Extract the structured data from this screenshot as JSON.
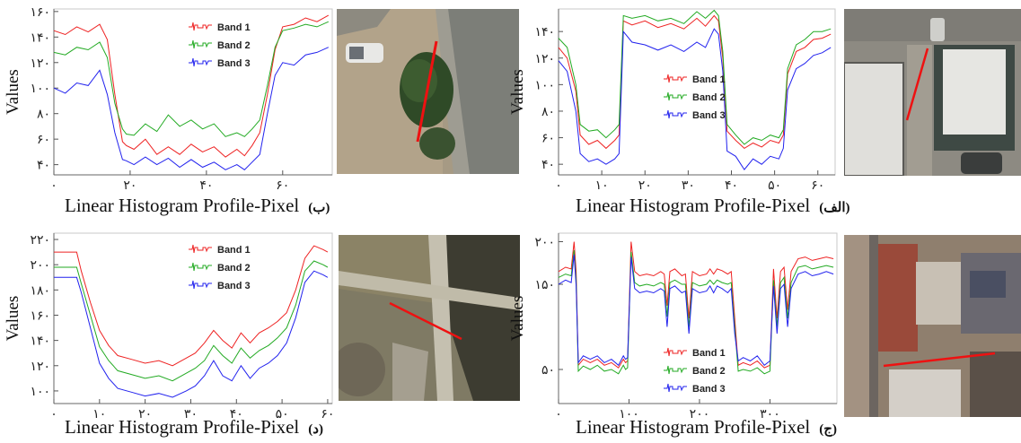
{
  "panels": [
    {
      "id": "b",
      "label": "(ب)",
      "xlabel": "Linear Histogram Profile-Pixel",
      "ylabel": "Values",
      "image": "tree-line",
      "chart_data": {
        "type": "line",
        "xlim": [
          0,
          73
        ],
        "ylim": [
          32,
          162
        ],
        "xticks": [
          0,
          20,
          40,
          60
        ],
        "xtick_labels": [
          "۰",
          "۲۰",
          "۴۰",
          "۶۰"
        ],
        "yticks": [
          40,
          60,
          80,
          100,
          120,
          140,
          160
        ],
        "ytick_labels": [
          "۴۰",
          "۶۰",
          "۸۰",
          "۱۰۰",
          "۱۲۰",
          "۱۴۰",
          "۱۶۰"
        ],
        "x": [
          0,
          3,
          6,
          9,
          12,
          14,
          16,
          18,
          19,
          21,
          24,
          27,
          30,
          33,
          36,
          39,
          42,
          45,
          48,
          50,
          52,
          54,
          56,
          58,
          60,
          63,
          66,
          69,
          72
        ],
        "series": [
          {
            "name": "Band 1",
            "color": "#ee2222",
            "values": [
              145,
              142,
              148,
              144,
              150,
              138,
              95,
              58,
              55,
              52,
              60,
              48,
              54,
              48,
              56,
              50,
              54,
              46,
              52,
              47,
              55,
              65,
              95,
              130,
              148,
              150,
              155,
              152,
              157
            ]
          },
          {
            "name": "Band 2",
            "color": "#22aa22",
            "values": [
              128,
              126,
              132,
              130,
              136,
              124,
              88,
              68,
              64,
              63,
              72,
              66,
              79,
              70,
              75,
              68,
              72,
              62,
              65,
              62,
              68,
              75,
              102,
              132,
              145,
              147,
              150,
              148,
              152
            ]
          },
          {
            "name": "Band 3",
            "color": "#2222ee",
            "values": [
              100,
              96,
              104,
              102,
              114,
              95,
              65,
              44,
              43,
              40,
              46,
              40,
              45,
              38,
              44,
              38,
              42,
              36,
              40,
              36,
              42,
              48,
              80,
              110,
              120,
              118,
              126,
              128,
              132
            ]
          }
        ]
      }
    },
    {
      "id": "alef",
      "label": "(الف)",
      "xlabel": "Linear Histogram Profile-Pixel",
      "ylabel": "Values",
      "image": "buildings-line",
      "chart_data": {
        "type": "line",
        "xlim": [
          0,
          64
        ],
        "ylim": [
          32,
          157
        ],
        "xticks": [
          0,
          10,
          20,
          30,
          40,
          50,
          60
        ],
        "xtick_labels": [
          "۰",
          "۱۰",
          "۲۰",
          "۳۰",
          "۴۰",
          "۵۰",
          "۶۰"
        ],
        "yticks": [
          40,
          60,
          80,
          100,
          120,
          140
        ],
        "ytick_labels": [
          "۴۰",
          "۶۰",
          "۸۰",
          "۱۰۰",
          "۱۲۰",
          "۱۴۰"
        ],
        "x": [
          0,
          2,
          4,
          5,
          7,
          9,
          11,
          13,
          14,
          15,
          17,
          20,
          23,
          26,
          29,
          32,
          34,
          36,
          37,
          38,
          39,
          41,
          43,
          45,
          47,
          49,
          51,
          52,
          53,
          55,
          57,
          59,
          61,
          63
        ],
        "series": [
          {
            "name": "Band 1",
            "color": "#ee2222",
            "values": [
              128,
              120,
              95,
              62,
              55,
              58,
              52,
              58,
              62,
              148,
              145,
              148,
              143,
              146,
              142,
              150,
              144,
              152,
              148,
              120,
              65,
              58,
              52,
              56,
              53,
              58,
              56,
              62,
              108,
              125,
              128,
              134,
              135,
              138
            ]
          },
          {
            "name": "Band 2",
            "color": "#22aa22",
            "values": [
              135,
              128,
              100,
              70,
              65,
              66,
              60,
              66,
              70,
              152,
              150,
              152,
              148,
              150,
              146,
              155,
              150,
              156,
              152,
              125,
              70,
              62,
              55,
              60,
              58,
              62,
              60,
              66,
              112,
              130,
              134,
              140,
              140,
              142
            ]
          },
          {
            "name": "Band 3",
            "color": "#2222ee",
            "values": [
              118,
              110,
              80,
              48,
              42,
              44,
              40,
              44,
              48,
              140,
              132,
              130,
              126,
              130,
              125,
              132,
              128,
              142,
              138,
              110,
              50,
              46,
              36,
              44,
              40,
              46,
              44,
              52,
              96,
              112,
              116,
              122,
              124,
              128
            ]
          }
        ]
      }
    },
    {
      "id": "dal",
      "label": "(د)",
      "xlabel": "Linear Histogram Profile-Pixel",
      "ylabel": "Values",
      "image": "crosswalk-line",
      "chart_data": {
        "type": "line",
        "xlim": [
          0,
          61
        ],
        "ylim": [
          90,
          225
        ],
        "xticks": [
          0,
          10,
          20,
          30,
          40,
          50,
          60
        ],
        "xtick_labels": [
          "۰",
          "۱۰",
          "۲۰",
          "۳۰",
          "۴۰",
          "۵۰",
          "۶۰"
        ],
        "yticks": [
          100,
          120,
          140,
          160,
          180,
          200,
          220
        ],
        "ytick_labels": [
          "۱۰۰",
          "۱۲۰",
          "۱۴۰",
          "۱۶۰",
          "۱۸۰",
          "۲۰۰",
          "۲۲۰"
        ],
        "x": [
          0,
          3,
          5,
          6,
          8,
          10,
          12,
          14,
          17,
          20,
          23,
          26,
          29,
          31,
          33,
          35,
          37,
          39,
          41,
          43,
          45,
          47,
          49,
          51,
          53,
          55,
          57,
          59,
          60
        ],
        "series": [
          {
            "name": "Band 1",
            "color": "#ee2222",
            "values": [
              210,
              210,
              210,
              195,
              170,
              148,
              136,
              128,
              125,
              122,
              124,
              120,
              126,
              130,
              138,
              148,
              140,
              134,
              146,
              138,
              146,
              150,
              155,
              162,
              180,
              205,
              215,
              212,
              210
            ]
          },
          {
            "name": "Band 2",
            "color": "#22aa22",
            "values": [
              198,
              198,
              198,
              185,
              160,
              135,
              124,
              116,
              113,
              110,
              112,
              108,
              114,
              118,
              124,
              136,
              128,
              122,
              134,
              126,
              132,
              136,
              142,
              150,
              168,
              195,
              203,
              200,
              198
            ]
          },
          {
            "name": "Band 3",
            "color": "#2222ee",
            "values": [
              190,
              190,
              190,
              178,
              150,
              122,
              110,
              102,
              99,
              96,
              98,
              95,
              100,
              104,
              112,
              124,
              112,
              108,
              120,
              110,
              118,
              122,
              128,
              138,
              158,
              186,
              195,
              192,
              190
            ]
          }
        ]
      }
    },
    {
      "id": "jim",
      "label": "(ج)",
      "xlabel": "Linear Histogram Profile-Pixel",
      "ylabel": "Values",
      "image": "city-line",
      "chart_data": {
        "type": "line",
        "xlim": [
          0,
          395
        ],
        "ylim": [
          10,
          210
        ],
        "xticks": [
          0,
          100,
          200,
          300
        ],
        "xtick_labels": [
          "۰",
          "۱۰۰",
          "۲۰۰",
          "۳۰۰"
        ],
        "yticks": [
          50,
          150,
          200
        ],
        "ytick_labels": [
          "۵۰",
          "۱۵۰",
          "۲۰۰"
        ],
        "x": [
          0,
          10,
          18,
          22,
          25,
          28,
          35,
          45,
          55,
          65,
          75,
          85,
          92,
          95,
          98,
          103,
          108,
          115,
          125,
          135,
          145,
          150,
          154,
          158,
          165,
          175,
          180,
          185,
          190,
          200,
          210,
          215,
          220,
          225,
          232,
          240,
          245,
          250,
          255,
          262,
          272,
          282,
          292,
          300,
          305,
          310,
          315,
          320,
          325,
          330,
          340,
          350,
          360,
          370,
          380,
          390
        ],
        "series": [
          {
            "name": "Band 1",
            "color": "#ee2222",
            "values": [
              165,
              170,
              168,
              200,
              165,
              55,
              62,
              58,
              62,
              55,
              58,
              52,
              62,
              58,
              60,
              200,
              165,
              160,
              162,
              160,
              165,
              162,
              125,
              165,
              168,
              160,
              162,
              110,
              165,
              160,
              162,
              168,
              162,
              168,
              166,
              162,
              165,
              110,
              55,
              58,
              55,
              60,
              52,
              55,
              168,
              110,
              165,
              170,
              120,
              165,
              180,
              182,
              178,
              180,
              182,
              180
            ]
          },
          {
            "name": "Band 2",
            "color": "#22aa22",
            "values": [
              158,
              162,
              160,
              190,
              155,
              48,
              54,
              50,
              55,
              48,
              50,
              45,
              55,
              50,
              52,
              188,
              152,
              148,
              150,
              148,
              152,
              150,
              112,
              152,
              155,
              150,
              150,
              100,
              152,
              148,
              150,
              155,
              150,
              155,
              152,
              150,
              152,
              100,
              48,
              50,
              48,
              52,
              45,
              48,
              155,
              100,
              152,
              158,
              110,
              152,
              170,
              172,
              168,
              170,
              172,
              170
            ]
          },
          {
            "name": "Band 3",
            "color": "#2222ee",
            "values": [
              150,
              155,
              152,
              185,
              148,
              58,
              66,
              62,
              66,
              58,
              62,
              55,
              66,
              62,
              64,
              182,
              145,
              140,
              142,
              140,
              145,
              142,
              100,
              145,
              148,
              140,
              142,
              92,
              145,
              140,
              142,
              148,
              140,
              148,
              145,
              140,
              145,
              92,
              60,
              64,
              60,
              66,
              55,
              60,
              148,
              92,
              145,
              150,
              100,
              145,
              162,
              165,
              160,
              162,
              165,
              162
            ]
          }
        ]
      }
    }
  ]
}
